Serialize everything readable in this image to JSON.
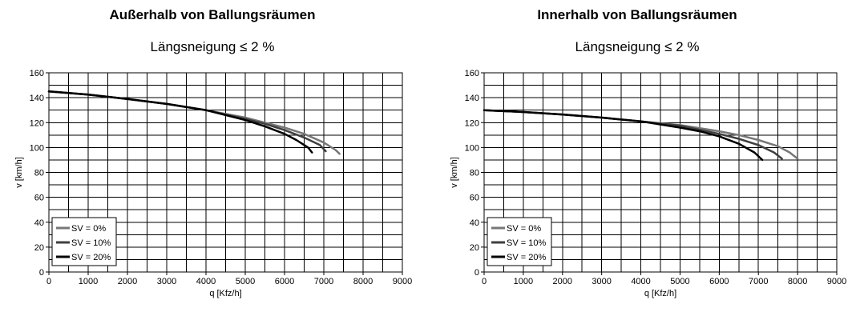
{
  "chart_data": [
    {
      "type": "line",
      "title": "Außerhalb von Ballungsräumen",
      "subtitle": "Längsneigung ≤ 2 %",
      "xlabel": "q [Kfz/h]",
      "ylabel": "v [km/h]",
      "xlim": [
        0,
        9000
      ],
      "ylim": [
        0,
        160
      ],
      "xticks": [
        0,
        1000,
        2000,
        3000,
        4000,
        5000,
        6000,
        7000,
        8000,
        9000
      ],
      "yticks": [
        0,
        20,
        40,
        60,
        80,
        100,
        120,
        140,
        160
      ],
      "grid": true,
      "legend_position": "bottom-left",
      "series": [
        {
          "name": "SV = 0%",
          "color": "#777777",
          "x": [
            0,
            1000,
            2000,
            3000,
            4000,
            5000,
            5500,
            6000,
            6500,
            7000,
            7300,
            7400
          ],
          "y": [
            145,
            142.5,
            139,
            135,
            130,
            124,
            120,
            116,
            111,
            104,
            98,
            95
          ]
        },
        {
          "name": "SV = 10%",
          "color": "#3f3f3f",
          "x": [
            0,
            1000,
            2000,
            3000,
            4000,
            5000,
            5500,
            6000,
            6500,
            6900,
            7050
          ],
          "y": [
            145,
            142.5,
            139,
            135,
            130,
            123,
            119,
            114,
            108,
            102,
            97
          ]
        },
        {
          "name": "SV = 20%",
          "color": "#000000",
          "x": [
            0,
            1000,
            2000,
            3000,
            4000,
            5000,
            5500,
            6000,
            6300,
            6600,
            6700
          ],
          "y": [
            145,
            142.5,
            139,
            135,
            130,
            122,
            117,
            111,
            106,
            100,
            96
          ]
        }
      ]
    },
    {
      "type": "line",
      "title": "Innerhalb von Ballungsräumen",
      "subtitle": "Längsneigung ≤ 2 %",
      "xlabel": "q [Kfz/h]",
      "ylabel": "v [km/h]",
      "xlim": [
        0,
        9000
      ],
      "ylim": [
        0,
        160
      ],
      "xticks": [
        0,
        1000,
        2000,
        3000,
        4000,
        5000,
        6000,
        7000,
        8000,
        9000
      ],
      "yticks": [
        0,
        20,
        40,
        60,
        80,
        100,
        120,
        140,
        160
      ],
      "grid": true,
      "legend_position": "bottom-left",
      "series": [
        {
          "name": "SV = 0%",
          "color": "#777777",
          "x": [
            0,
            1000,
            2000,
            3000,
            4000,
            5000,
            6000,
            6500,
            7000,
            7500,
            7800,
            8000
          ],
          "y": [
            130,
            128.5,
            126.5,
            124,
            121,
            118,
            113,
            110,
            106,
            101,
            96,
            91
          ]
        },
        {
          "name": "SV = 10%",
          "color": "#3f3f3f",
          "x": [
            0,
            1000,
            2000,
            3000,
            4000,
            5000,
            6000,
            6500,
            7000,
            7400,
            7600
          ],
          "y": [
            130,
            128.5,
            126.5,
            124,
            121,
            117.5,
            111,
            107,
            102,
            96,
            91
          ]
        },
        {
          "name": "SV = 20%",
          "color": "#000000",
          "x": [
            0,
            1000,
            2000,
            3000,
            4000,
            5000,
            5500,
            6000,
            6500,
            6900,
            7100
          ],
          "y": [
            130,
            128.5,
            126.5,
            124,
            121,
            116,
            113,
            109,
            103,
            96,
            90
          ]
        }
      ]
    }
  ]
}
